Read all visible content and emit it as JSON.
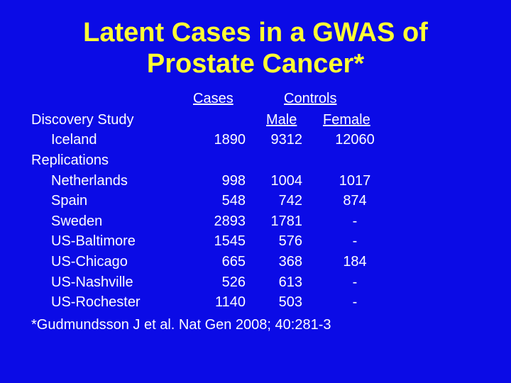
{
  "title": {
    "line1": "Latent Cases in a GWAS of",
    "line2": "Prostate Cancer*"
  },
  "headers": {
    "cases": "Cases",
    "controls": "Controls",
    "male": "Male",
    "female": "Female"
  },
  "sections": {
    "discovery": "Discovery Study",
    "replications": "Replications"
  },
  "discovery_rows": [
    {
      "label": "Iceland",
      "cases": "1890",
      "male": "9312",
      "female": "12060"
    }
  ],
  "replication_rows": [
    {
      "label": "Netherlands",
      "cases": "998",
      "male": "1004",
      "female": "1017"
    },
    {
      "label": "Spain",
      "cases": "548",
      "male": "742",
      "female": "874"
    },
    {
      "label": "Sweden",
      "cases": "2893",
      "male": "1781",
      "female": "-"
    },
    {
      "label": "US-Baltimore",
      "cases": "1545",
      "male": "576",
      "female": "-"
    },
    {
      "label": "US-Chicago",
      "cases": "665",
      "male": "368",
      "female": "184"
    },
    {
      "label": "US-Nashville",
      "cases": "526",
      "male": "613",
      "female": "-"
    },
    {
      "label": "US-Rochester",
      "cases": "1140",
      "male": "503",
      "female": "-"
    }
  ],
  "footnote": "*Gudmundsson J et al.  Nat Gen 2008; 40:281-3",
  "colors": {
    "background": "#0B0BE6",
    "title": "#FFFF33",
    "text": "#FFFFFF"
  }
}
